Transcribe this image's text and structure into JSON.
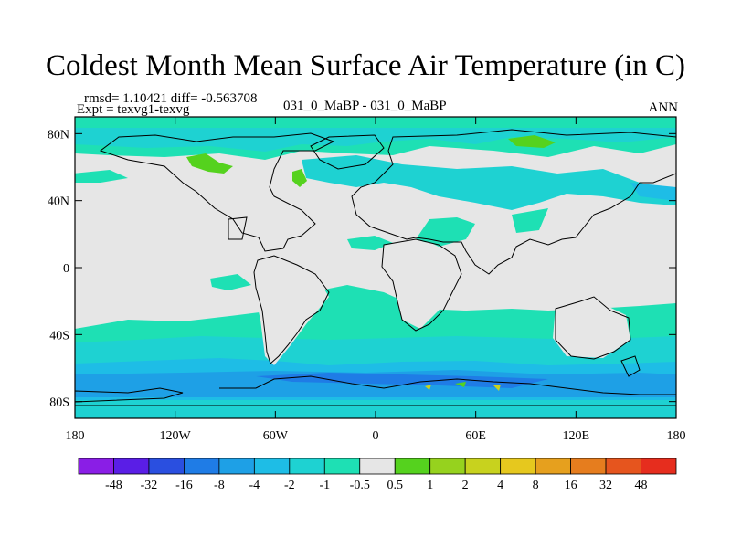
{
  "title": "Coldest Month Mean Surface Air Temperature (in C)",
  "stats": {
    "rmsd_text": "rmsd= 1.10421 diff= -0.563708"
  },
  "experiment": "Expt = texvg1-texvg",
  "case_label": "031_0_MaBP - 031_0_MaBP",
  "season": "ANN",
  "axes": {
    "lat_ticks": [
      {
        "value": 80,
        "label": "80N"
      },
      {
        "value": 40,
        "label": "40N"
      },
      {
        "value": 0,
        "label": "0"
      },
      {
        "value": -40,
        "label": "40S"
      },
      {
        "value": -80,
        "label": "80S"
      }
    ],
    "lon_ticks": [
      {
        "value": -180,
        "label": "180"
      },
      {
        "value": -120,
        "label": "120W"
      },
      {
        "value": -60,
        "label": "60W"
      },
      {
        "value": 0,
        "label": "0"
      },
      {
        "value": 60,
        "label": "60E"
      },
      {
        "value": 120,
        "label": "120E"
      },
      {
        "value": 180,
        "label": "180"
      }
    ]
  },
  "colorbar": {
    "colors": [
      "#8a1ee6",
      "#5a1ee6",
      "#2a4fe0",
      "#1f7ce6",
      "#1ea0e6",
      "#1ebde6",
      "#1ed2d2",
      "#1ee0b4",
      "#e6e6e6",
      "#55d21e",
      "#96d21e",
      "#c8d21e",
      "#e6c81e",
      "#e6a01e",
      "#e67d1e",
      "#e6551e",
      "#e62d1e"
    ],
    "labels": [
      "-48",
      "-32",
      "-16",
      "-8",
      "-4",
      "-2",
      "-1",
      "-0.5",
      "0.5",
      "1",
      "2",
      "4",
      "8",
      "16",
      "32",
      "48"
    ]
  }
}
